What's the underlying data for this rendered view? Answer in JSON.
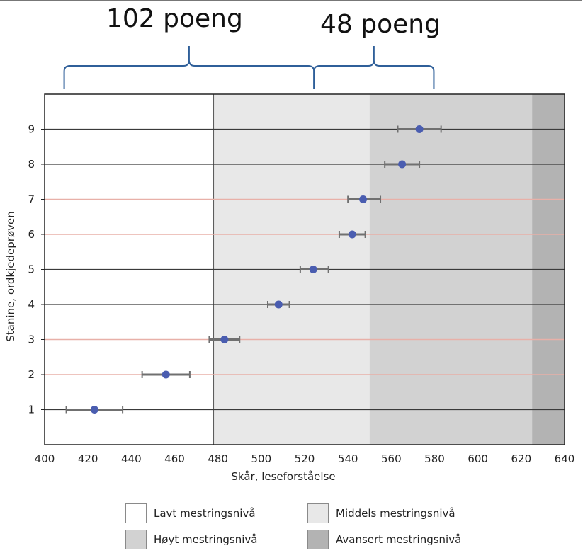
{
  "annotations": {
    "left_bracket_label": "102 poeng",
    "right_bracket_label": "48 poeng"
  },
  "colors": {
    "band_low": "#ffffff",
    "band_middle": "#e8e8e8",
    "band_high": "#d2d2d2",
    "band_advanced": "#b3b3b3",
    "point": "#4a5db0",
    "errorbar": "#707070",
    "bracket": "#2f5f99",
    "grid_dark": "#3a3a3a",
    "grid_light": "#e8b0a8"
  },
  "chart_data": {
    "type": "scatter",
    "xlabel": "Skår, leseforståelse",
    "ylabel": "Stanine, ordkjedeprøven",
    "xlim": [
      400,
      640
    ],
    "ylim": [
      0,
      10
    ],
    "xticks": [
      400,
      420,
      440,
      460,
      480,
      500,
      520,
      540,
      560,
      580,
      600,
      620,
      640
    ],
    "yticks": [
      1,
      2,
      3,
      4,
      5,
      6,
      7,
      8,
      9
    ],
    "series": [
      {
        "points": [
          {
            "y": 1,
            "x": 423,
            "err_low": 410,
            "err_high": 436
          },
          {
            "y": 2,
            "x": 456,
            "err_low": 445,
            "err_high": 467
          },
          {
            "y": 3,
            "x": 483,
            "err_low": 476,
            "err_high": 490
          },
          {
            "y": 4,
            "x": 508,
            "err_low": 503,
            "err_high": 513
          },
          {
            "y": 5,
            "x": 524,
            "err_low": 518,
            "err_high": 531
          },
          {
            "y": 6,
            "x": 542,
            "err_low": 536,
            "err_high": 548
          },
          {
            "y": 7,
            "x": 547,
            "err_low": 540,
            "err_high": 555
          },
          {
            "y": 8,
            "x": 565,
            "err_low": 557,
            "err_high": 573
          },
          {
            "y": 9,
            "x": 573,
            "err_low": 563,
            "err_high": 583
          }
        ]
      }
    ],
    "bands": [
      {
        "from": 400,
        "to": 478,
        "label": "Lavt mestringsnivå",
        "color": "#ffffff"
      },
      {
        "from": 478,
        "to": 550,
        "label": "Middels mestringsnivå",
        "color": "#e8e8e8"
      },
      {
        "from": 550,
        "to": 625,
        "label": "Høyt mestringsnivå",
        "color": "#d2d2d2"
      },
      {
        "from": 625,
        "to": 640,
        "label": "Avansert mestringsnivå",
        "color": "#b3b3b3"
      }
    ],
    "row_line_colors": {
      "dark_rows": [
        1,
        4,
        5,
        8,
        9
      ],
      "light_rows": [
        2,
        3,
        6,
        7
      ]
    },
    "brackets": [
      {
        "from": 410,
        "to": 524,
        "label": "102 poeng"
      },
      {
        "from": 524,
        "to": 579,
        "label": "48 poeng"
      }
    ],
    "legend": [
      {
        "label": "Lavt mestringsnivå",
        "color": "#ffffff"
      },
      {
        "label": "Middels mestringsnivå",
        "color": "#e8e8e8"
      },
      {
        "label": "Høyt mestringsnivå",
        "color": "#d2d2d2"
      },
      {
        "label": "Avansert mestringsnivå",
        "color": "#b3b3b3"
      }
    ],
    "legend_position": "bottom-center",
    "grid": true
  }
}
